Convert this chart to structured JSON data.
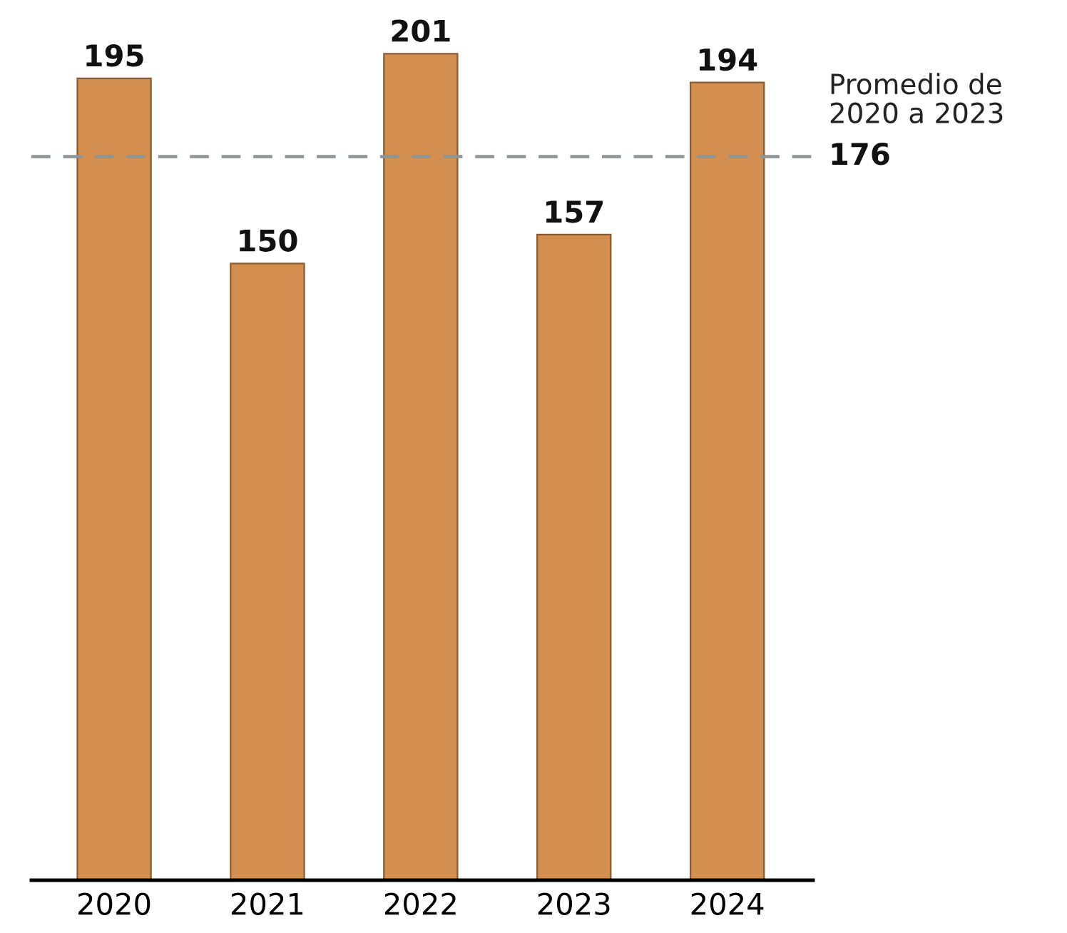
{
  "chart_data": {
    "type": "bar",
    "categories": [
      "2020",
      "2021",
      "2022",
      "2023",
      "2024"
    ],
    "values": [
      195,
      150,
      201,
      157,
      194
    ],
    "color": "#d38f4f",
    "data_labels": true,
    "tick_labels": "x",
    "grid": false,
    "legend": false,
    "annotations": [
      "176"
    ],
    "ref_lines": [
      {
        "axis": "y",
        "value": 176,
        "label": "Promedio de\n2020 a 2023",
        "color": "#8c9696",
        "line_style": "dashed"
      }
    ]
  }
}
